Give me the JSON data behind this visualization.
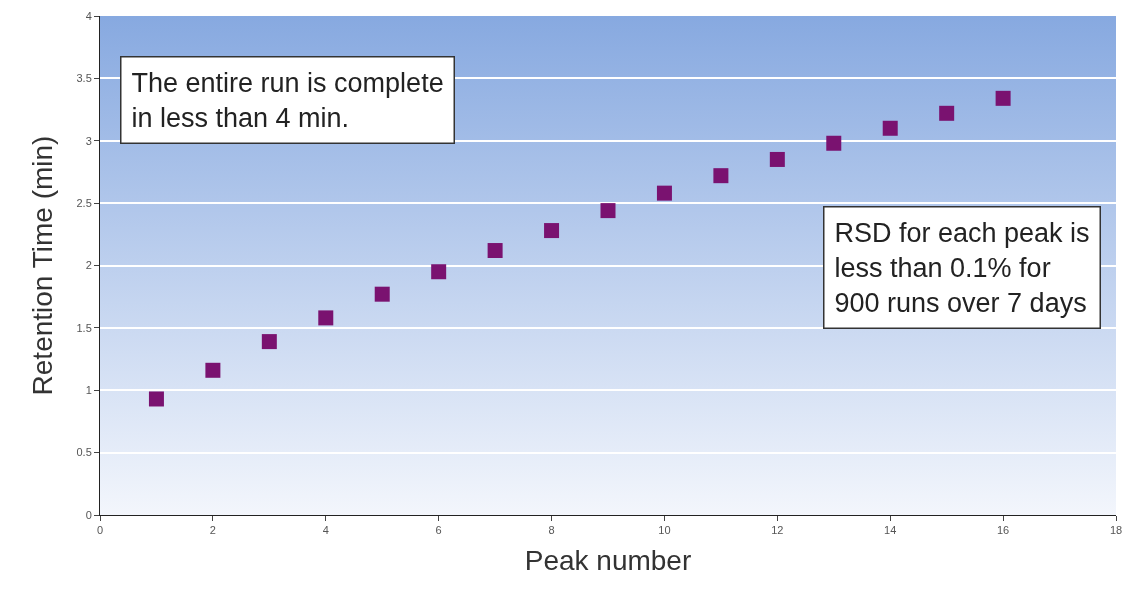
{
  "chart_data": {
    "type": "scatter",
    "xlabel": "Peak number",
    "ylabel": "Retention Time (min)",
    "x": [
      1,
      2,
      3,
      4,
      5,
      6,
      7,
      8,
      9,
      10,
      11,
      12,
      13,
      14,
      15,
      16
    ],
    "series": [
      {
        "color": "#7a1270",
        "values": [
          0.93,
          1.16,
          1.39,
          1.58,
          1.77,
          1.95,
          2.12,
          2.28,
          2.44,
          2.58,
          2.72,
          2.85,
          2.98,
          3.1,
          3.22,
          3.34
        ]
      }
    ],
    "xlim": [
      0,
      18
    ],
    "xticks": [
      0,
      2,
      4,
      6,
      8,
      10,
      12,
      14,
      16,
      18
    ],
    "ylim": [
      0,
      4
    ],
    "yticks": [
      0,
      0.5,
      1,
      1.5,
      2,
      2.5,
      3,
      3.5,
      4
    ],
    "grid": "y",
    "marker": "square",
    "annotations": [
      "The entire run is complete\nin less than 4 min.",
      "RSD for each peak is\nless than 0.1% for\n900 runs over 7 days"
    ]
  }
}
